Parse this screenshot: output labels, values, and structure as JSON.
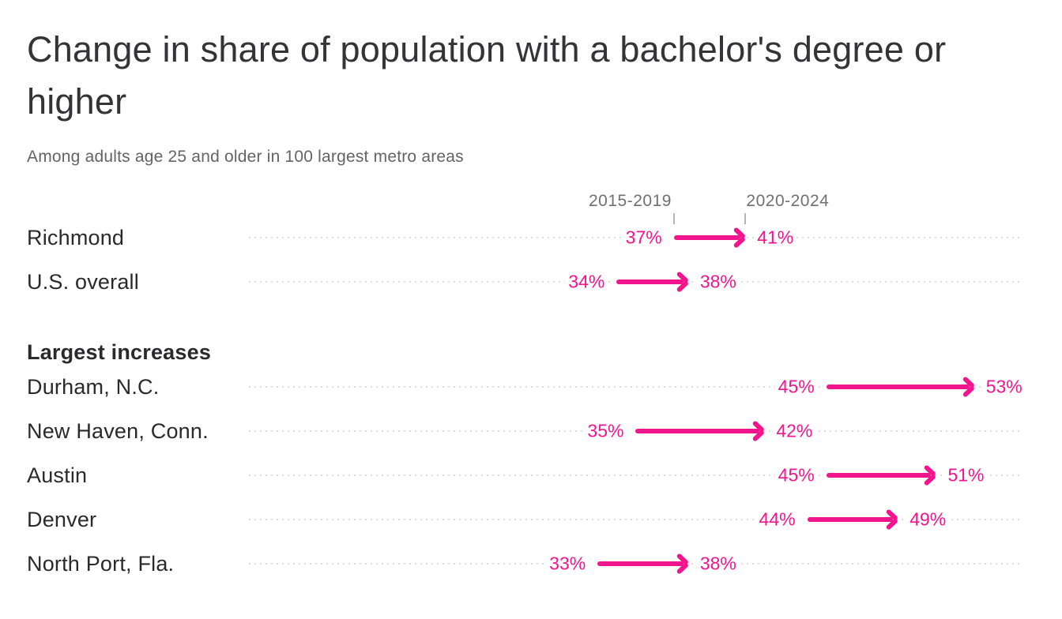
{
  "title": "Change in share of population with a bachelor's degree or higher",
  "subtitle": "Among adults age 25 and older in 100 largest metro areas",
  "colors": {
    "accent": "#f3158e",
    "title_text": "#333338",
    "label_text": "#2a2a2e",
    "muted_text": "#707070",
    "grid": "#dcdcdc",
    "tick": "#b5b5b5",
    "background": "#ffffff"
  },
  "chart_data": {
    "type": "arrow",
    "title": "Change in share of population with a bachelor's degree or higher",
    "subtitle": "Among adults age 25 and older in 100 largest metro areas",
    "period_labels": [
      "2015-2019",
      "2020-2024"
    ],
    "unit": "%",
    "axis_range": [
      15,
      55.5
    ],
    "grid": "dotted horizontal row lines",
    "legend_position": "top ticks above first row",
    "groups": [
      {
        "header": null,
        "rows": [
          {
            "label": "Richmond",
            "start": 37,
            "end": 41
          },
          {
            "label": "U.S. overall",
            "start": 34,
            "end": 38
          }
        ]
      },
      {
        "header": "Largest increases",
        "rows": [
          {
            "label": "Durham, N.C.",
            "start": 45,
            "end": 53
          },
          {
            "label": "New Haven, Conn.",
            "start": 35,
            "end": 42
          },
          {
            "label": "Austin",
            "start": 45,
            "end": 51
          },
          {
            "label": "Denver",
            "start": 44,
            "end": 49
          },
          {
            "label": "North Port, Fla.",
            "start": 33,
            "end": 38
          }
        ]
      }
    ]
  }
}
